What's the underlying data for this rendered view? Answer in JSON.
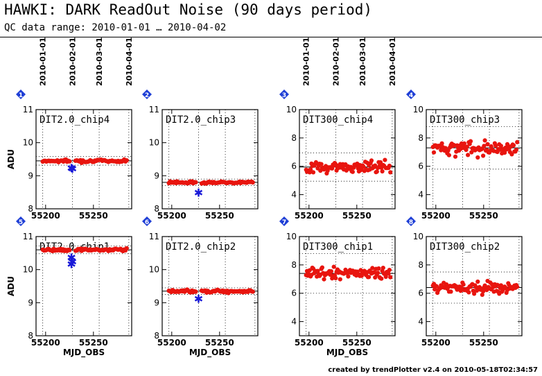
{
  "header": {
    "title": "HAWKI: DARK ReadOut Noise (90 days period)",
    "subtitle": "QC data range: 2010-01-01 … 2010-04-02"
  },
  "footer": {
    "credit": "created by trendPlotter v2.4 on 2010-05-18T02:34:57"
  },
  "colors": {
    "data": "#e8150f",
    "outlier": "#1a1ad8",
    "badge": "#1f3fd6",
    "axis": "#000000"
  },
  "chart_data": {
    "type": "scatter",
    "xlabel": "MJD_OBS",
    "ylabel": "ADU",
    "xlim": [
      55190,
      55290
    ],
    "x_ticks": [
      55200,
      55250
    ],
    "date_ticks": [
      {
        "x": 55197,
        "label": "2010-01-01"
      },
      {
        "x": 55228,
        "label": "2010-02-01"
      },
      {
        "x": 55256,
        "label": "2010-03-01"
      },
      {
        "x": 55287,
        "label": "2010-04-01"
      }
    ],
    "panels": [
      {
        "index": "1",
        "name": "DIT2.0_chip4",
        "ylim": [
          8,
          11
        ],
        "y_ticks": [
          8,
          9,
          10,
          11
        ],
        "kind": "flat",
        "mean": 9.45,
        "spread": 0.04,
        "band": 0.13,
        "outliers": [
          9.22,
          9.2
        ],
        "outlier_x": [
          55227,
          55228
        ]
      },
      {
        "index": "2",
        "name": "DIT2.0_chip3",
        "ylim": [
          8,
          11
        ],
        "y_ticks": [
          8,
          9,
          10,
          11
        ],
        "kind": "flat",
        "mean": 8.8,
        "spread": 0.03,
        "band": 0.1,
        "outliers": [
          8.47
        ],
        "outlier_x": [
          55228
        ]
      },
      {
        "index": "3",
        "name": "DIT300_chip4",
        "ylim": [
          3,
          10
        ],
        "y_ticks": [
          4,
          6,
          8,
          10
        ],
        "kind": "scatter",
        "mean": 5.95,
        "spread": 0.4,
        "band": 1.0,
        "outliers": [],
        "outlier_x": []
      },
      {
        "index": "4",
        "name": "DIT300_chip3",
        "ylim": [
          3,
          10
        ],
        "y_ticks": [
          4,
          6,
          8,
          10
        ],
        "kind": "scatter",
        "mean": 7.3,
        "spread": 0.45,
        "band": 1.5,
        "outliers": [],
        "outlier_x": []
      },
      {
        "index": "5",
        "name": "DIT2.0_chip1",
        "ylim": [
          8,
          11
        ],
        "y_ticks": [
          8,
          9,
          10,
          11
        ],
        "kind": "flat",
        "mean": 10.6,
        "spread": 0.04,
        "band": 0.12,
        "outliers": [
          10.35,
          10.22,
          10.15
        ],
        "outlier_x": [
          55227,
          55228,
          55227
        ]
      },
      {
        "index": "6",
        "name": "DIT2.0_chip2",
        "ylim": [
          8,
          11
        ],
        "y_ticks": [
          8,
          9,
          10,
          11
        ],
        "kind": "flat",
        "mean": 9.35,
        "spread": 0.04,
        "band": 0.1,
        "outliers": [
          9.1
        ],
        "outlier_x": [
          55228
        ]
      },
      {
        "index": "7",
        "name": "DIT300_chip1",
        "ylim": [
          3,
          10
        ],
        "y_ticks": [
          4,
          6,
          8,
          10
        ],
        "kind": "scatter",
        "mean": 7.4,
        "spread": 0.45,
        "band": 1.4,
        "outliers": [],
        "outlier_x": []
      },
      {
        "index": "8",
        "name": "DIT300_chip2",
        "ylim": [
          3,
          10
        ],
        "y_ticks": [
          4,
          6,
          8,
          10
        ],
        "kind": "scatter",
        "mean": 6.4,
        "spread": 0.4,
        "band": 1.1,
        "outliers": [],
        "outlier_x": []
      }
    ]
  }
}
